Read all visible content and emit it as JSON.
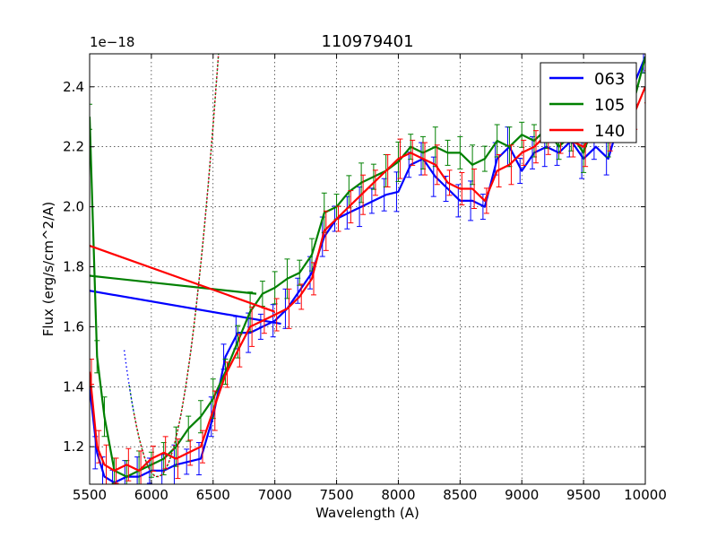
{
  "chart_data": {
    "type": "line",
    "title": "110979401",
    "xlabel": "Wavelength (A)",
    "ylabel": "Flux (erg/s/cm^2/A)",
    "offset_text": "1e−18",
    "xlim": [
      5500,
      10000
    ],
    "ylim": [
      1.075,
      2.51
    ],
    "x_ticks": [
      5500,
      6000,
      6500,
      7000,
      7500,
      8000,
      8500,
      9000,
      9500,
      10000
    ],
    "y_ticks": [
      1.2,
      1.4,
      1.6,
      1.8,
      2.0,
      2.2,
      2.4
    ],
    "grid": true,
    "legend_position": "top-right",
    "series": [
      {
        "name": "063",
        "color": "#0000ff",
        "x": [
          5500,
          5560,
          5620,
          5700,
          5800,
          5900,
          6000,
          6100,
          6200,
          6300,
          6400,
          6500,
          6600,
          6700,
          6800,
          6900,
          7000,
          7100,
          7200,
          7300,
          7400,
          7500,
          7600,
          7700,
          7800,
          7900,
          8000,
          8100,
          8200,
          8300,
          8400,
          8500,
          8600,
          8700,
          8800,
          8900,
          9000,
          9100,
          9200,
          9300,
          9400,
          9500,
          9600,
          9700,
          9800,
          9900,
          10000
        ],
        "y": [
          1.4,
          1.18,
          1.1,
          1.08,
          1.1,
          1.1,
          1.12,
          1.12,
          1.14,
          1.15,
          1.16,
          1.3,
          1.5,
          1.58,
          1.58,
          1.6,
          1.62,
          1.66,
          1.72,
          1.78,
          1.9,
          1.96,
          1.98,
          2.0,
          2.02,
          2.04,
          2.05,
          2.14,
          2.16,
          2.1,
          2.06,
          2.02,
          2.02,
          2.0,
          2.16,
          2.2,
          2.12,
          2.18,
          2.2,
          2.18,
          2.22,
          2.16,
          2.2,
          2.16,
          2.3,
          2.4,
          2.5
        ],
        "bridge": [
          [
            5500,
            1.72
          ],
          [
            7050,
            1.61
          ]
        ]
      },
      {
        "name": "105",
        "color": "#008000",
        "x": [
          5500,
          5560,
          5620,
          5700,
          5800,
          5900,
          6000,
          6100,
          6200,
          6300,
          6400,
          6500,
          6600,
          6700,
          6800,
          6900,
          7000,
          7100,
          7200,
          7300,
          7400,
          7500,
          7600,
          7700,
          7800,
          7900,
          8000,
          8100,
          8200,
          8300,
          8400,
          8500,
          8600,
          8700,
          8800,
          8900,
          9000,
          9100,
          9200,
          9300,
          9400,
          9500,
          9600,
          9700,
          9800,
          9900,
          10000
        ],
        "y": [
          2.3,
          1.5,
          1.3,
          1.12,
          1.1,
          1.12,
          1.14,
          1.16,
          1.2,
          1.26,
          1.3,
          1.36,
          1.45,
          1.55,
          1.65,
          1.71,
          1.73,
          1.76,
          1.78,
          1.84,
          1.98,
          2.0,
          2.05,
          2.08,
          2.1,
          2.12,
          2.15,
          2.2,
          2.18,
          2.2,
          2.18,
          2.18,
          2.14,
          2.16,
          2.22,
          2.2,
          2.24,
          2.22,
          2.26,
          2.2,
          2.24,
          2.18,
          2.3,
          2.22,
          2.3,
          2.34,
          2.5
        ],
        "bridge": [
          [
            5500,
            1.77
          ],
          [
            6850,
            1.71
          ]
        ]
      },
      {
        "name": "140",
        "color": "#ff0000",
        "x": [
          5500,
          5560,
          5620,
          5700,
          5800,
          5900,
          6000,
          6100,
          6200,
          6300,
          6400,
          6500,
          6600,
          6700,
          6800,
          6900,
          7000,
          7100,
          7200,
          7300,
          7400,
          7500,
          7600,
          7700,
          7800,
          7900,
          8000,
          8100,
          8200,
          8300,
          8400,
          8500,
          8600,
          8700,
          8800,
          8900,
          9000,
          9100,
          9200,
          9300,
          9400,
          9500,
          9600,
          9700,
          9800,
          9900,
          10000
        ],
        "y": [
          1.45,
          1.2,
          1.14,
          1.12,
          1.14,
          1.12,
          1.16,
          1.18,
          1.16,
          1.18,
          1.2,
          1.32,
          1.44,
          1.52,
          1.6,
          1.62,
          1.64,
          1.66,
          1.7,
          1.76,
          1.92,
          1.96,
          2.0,
          2.04,
          2.08,
          2.12,
          2.16,
          2.18,
          2.16,
          2.14,
          2.08,
          2.06,
          2.06,
          2.02,
          2.12,
          2.14,
          2.18,
          2.2,
          2.24,
          2.22,
          2.22,
          2.2,
          2.26,
          2.24,
          2.28,
          2.3,
          2.4
        ],
        "bridge": [
          [
            5500,
            1.87
          ],
          [
            7000,
            1.65
          ]
        ]
      }
    ]
  }
}
